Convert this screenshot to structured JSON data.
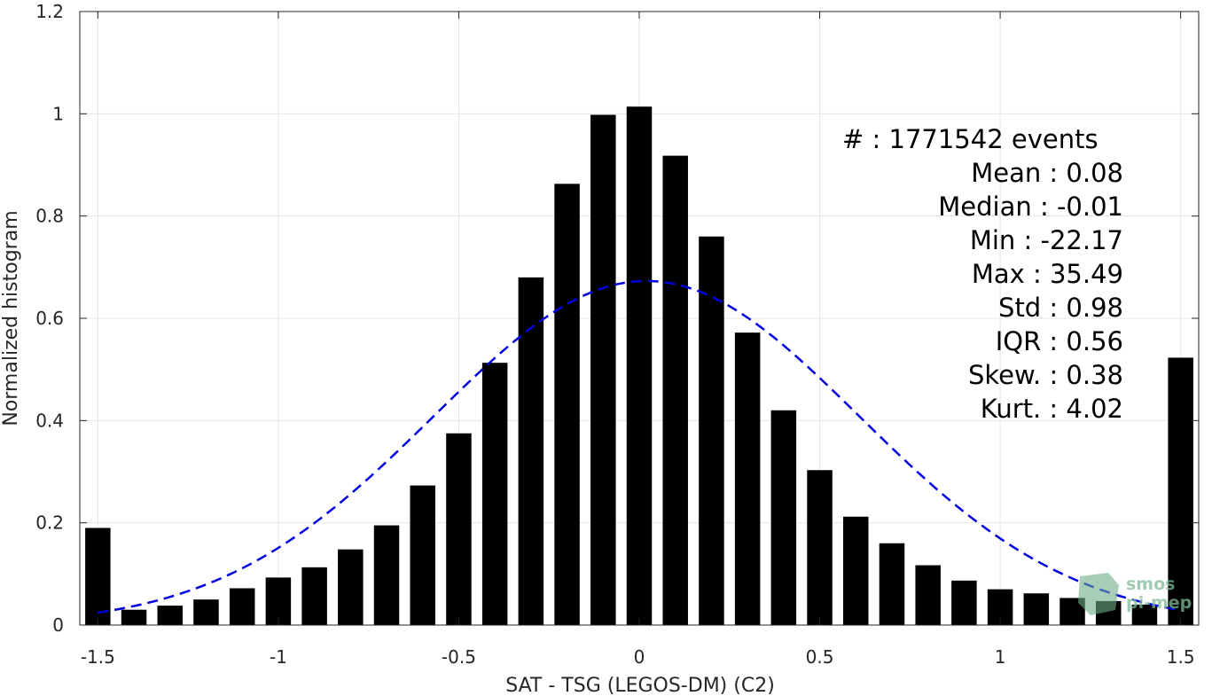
{
  "chart_data": {
    "type": "bar",
    "xlabel": "SAT - TSG (LEGOS-DM) (C2)",
    "ylabel": "Normalized histogram",
    "xlim": [
      -1.55,
      1.55
    ],
    "ylim": [
      0,
      1.2
    ],
    "xticks": [
      -1.5,
      -1,
      -0.5,
      0,
      0.5,
      1,
      1.5
    ],
    "xtick_labels": [
      "-1.5",
      "-1",
      "-0.5",
      "0",
      "0.5",
      "1",
      "1.5"
    ],
    "yticks": [
      0,
      0.2,
      0.4,
      0.6,
      0.8,
      1,
      1.2
    ],
    "ytick_labels": [
      "0",
      "0.2",
      "0.4",
      "0.6",
      "0.8",
      "1",
      "1.2"
    ],
    "grid": true,
    "bar_color": "#000000",
    "bar_width": 0.07,
    "bins_x": [
      -1.5,
      -1.4,
      -1.3,
      -1.2,
      -1.1,
      -1.0,
      -0.9,
      -0.8,
      -0.7,
      -0.6,
      -0.5,
      -0.4,
      -0.3,
      -0.2,
      -0.1,
      0.0,
      0.1,
      0.2,
      0.3,
      0.4,
      0.5,
      0.6,
      0.7,
      0.8,
      0.9,
      1.0,
      1.1,
      1.2,
      1.3,
      1.4,
      1.5
    ],
    "values": [
      0.19,
      0.03,
      0.038,
      0.05,
      0.072,
      0.093,
      0.113,
      0.148,
      0.195,
      0.273,
      0.375,
      0.513,
      0.68,
      0.863,
      0.998,
      1.014,
      0.918,
      0.76,
      0.572,
      0.42,
      0.303,
      0.212,
      0.16,
      0.117,
      0.087,
      0.07,
      0.062,
      0.053,
      0.047,
      0.04,
      0.523
    ],
    "fit_curve": {
      "style": "dashed",
      "color": "#0000e0",
      "mean": 0.02,
      "std": 0.59,
      "peak": 0.673,
      "x_range": [
        -1.5,
        1.5
      ]
    },
    "annotation_lines": [
      {
        "text": "#  : 1771542 events",
        "anchor": "start"
      },
      {
        "text": "Mean : 0.08",
        "anchor": "end"
      },
      {
        "text": "Median : -0.01",
        "anchor": "end"
      },
      {
        "text": "Min : -22.17",
        "anchor": "end"
      },
      {
        "text": "Max : 35.49",
        "anchor": "end"
      },
      {
        "text": "Std : 0.98",
        "anchor": "end"
      },
      {
        "text": "IQR : 0.56",
        "anchor": "end"
      },
      {
        "text": "Skew. : 0.38",
        "anchor": "end"
      },
      {
        "text": "Kurt. : 4.02",
        "anchor": "end"
      }
    ]
  },
  "watermark": {
    "line1": "smos",
    "line2": "pi-mep",
    "color": "#7dbb96"
  }
}
